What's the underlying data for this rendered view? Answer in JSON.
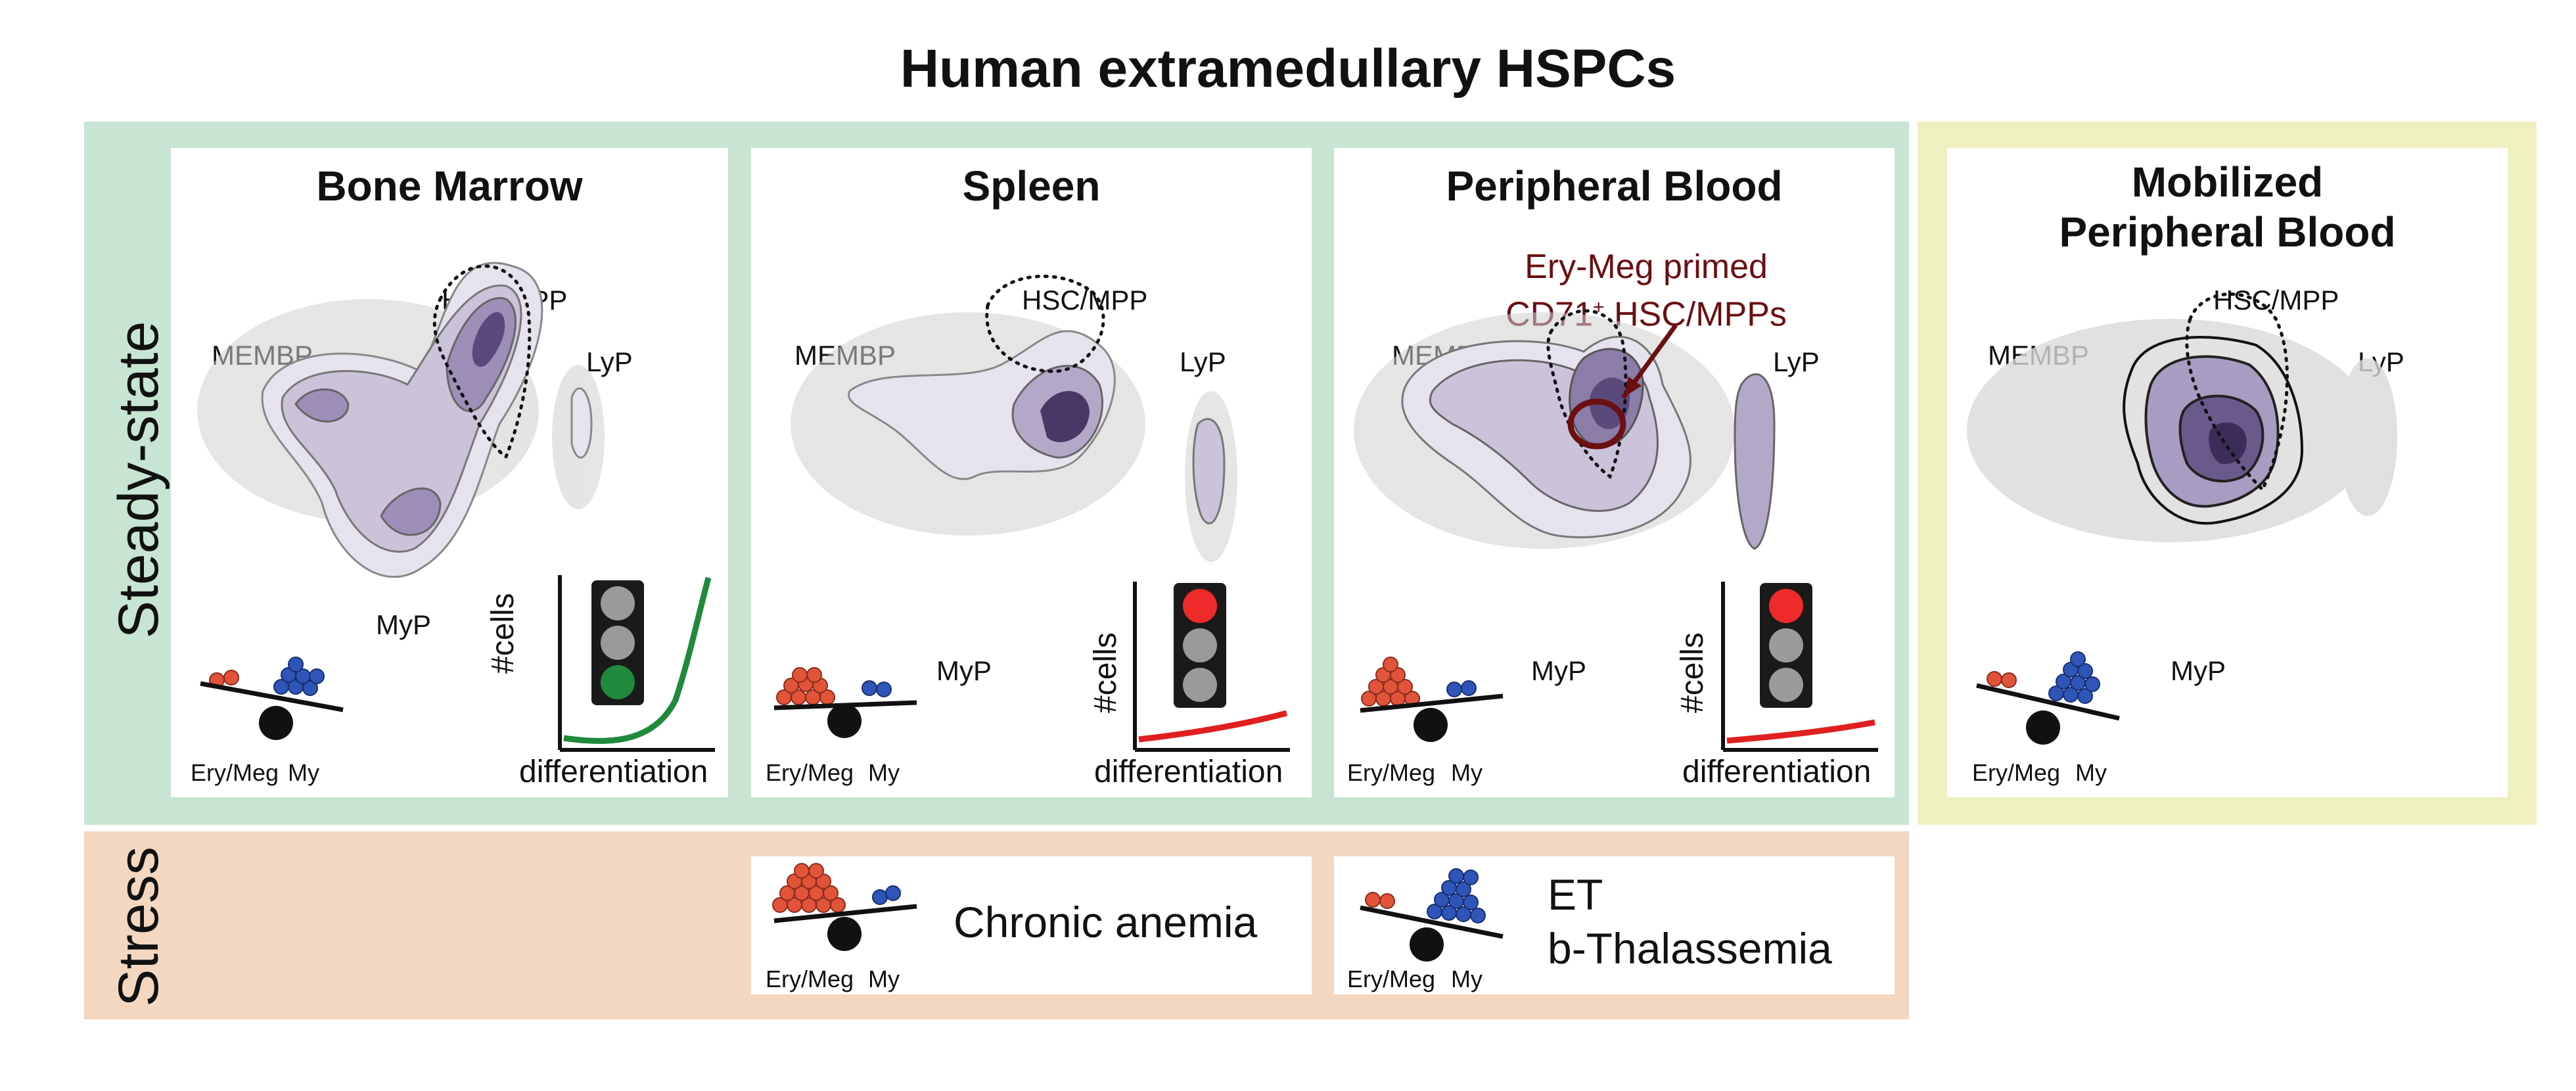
{
  "title": "Human extramedullary HSPCs",
  "row_labels": {
    "steady": "Steady-state",
    "stress": "Stress"
  },
  "panels": [
    {
      "title": "Bone Marrow",
      "light": "green"
    },
    {
      "title": "Spleen",
      "light": "red"
    },
    {
      "title": "Peripheral Blood",
      "light": "red"
    },
    {
      "title_line1": "Mobilized",
      "title_line2": "Peripheral Blood"
    }
  ],
  "population_labels": {
    "hsc": "HSC/MPP",
    "membp": "MEMBP",
    "lyp": "LyP",
    "myp": "MyP"
  },
  "annotation": {
    "line1": "Ery-Meg primed",
    "line2_prefix": "CD71",
    "line2_sup": "+",
    "line2_suffix": " HSC/MPPs"
  },
  "axes": {
    "y": "#cells",
    "x": "differentiation"
  },
  "balance": {
    "left": "Ery/Meg",
    "right": "My"
  },
  "stress": [
    {
      "text": "Chronic anemia"
    },
    {
      "line1": "ET",
      "line2": "b-Thalassemia"
    }
  ],
  "colors": {
    "steady_band": "#c8e4d2",
    "mobilized_band": "#eef0c0",
    "stress_band": "#f3d7c0",
    "density": "#4a3766",
    "erymeg_cells": "#e2543a",
    "my_cells": "#2f55b8",
    "light_green": "#1f8a3c",
    "light_red": "#ee2a2a",
    "curve_green": "#1f8a3c",
    "curve_red": "#e02020",
    "annotation": "#6a0f12"
  }
}
